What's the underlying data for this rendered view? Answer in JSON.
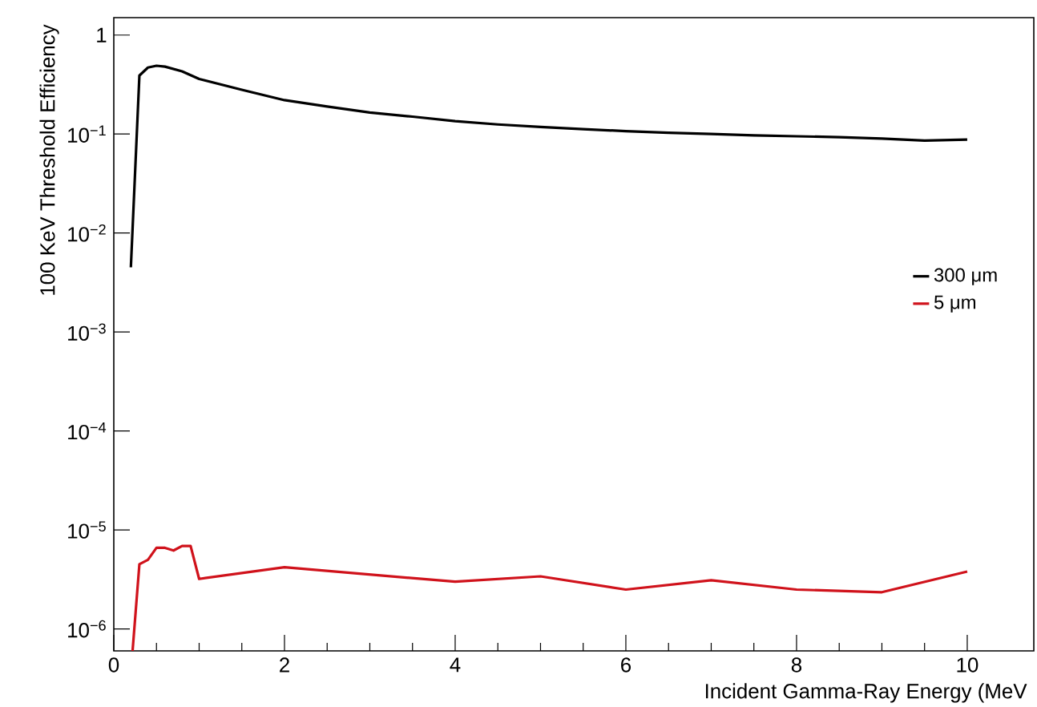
{
  "chart_data": {
    "type": "line",
    "xlabel": "Incident Gamma-Ray Energy (MeV",
    "ylabel": "100 KeV Threshold Efficiency",
    "log": "y",
    "xlim": [
      0,
      10.78
    ],
    "ylim": [
      6e-07,
      1.5
    ],
    "xticks": [
      0,
      2,
      4,
      6,
      8,
      10
    ],
    "yticks": [
      1,
      {
        "value": 0.1,
        "label": "10$^{−1}$"
      },
      {
        "value": 0.01,
        "label": "10$^{−2}$"
      },
      {
        "value": 0.001,
        "label": "10$^{−3}$"
      },
      {
        "value": 0.0001,
        "label": "10$^{−4}$"
      },
      {
        "value": 1e-05,
        "label": "10$^{−5}$"
      },
      {
        "value": 1e-06,
        "label": "10$^{−6}$"
      }
    ],
    "legend": "right",
    "grid": false,
    "marker": "none",
    "line_style": "solid",
    "series": [
      {
        "name": "300 μm",
        "color": "#000000",
        "x": [
          0.2,
          0.3,
          0.4,
          0.5,
          0.6,
          0.8,
          1.0,
          1.5,
          2.0,
          2.5,
          3.0,
          3.5,
          4.0,
          4.5,
          5.0,
          5.5,
          6.0,
          6.5,
          7.0,
          7.5,
          8.0,
          8.5,
          9.0,
          9.5,
          10.0
        ],
        "values": [
          0.0045,
          0.39,
          0.47,
          0.49,
          0.48,
          0.43,
          0.36,
          0.28,
          0.22,
          0.19,
          0.165,
          0.15,
          0.135,
          0.125,
          0.118,
          0.112,
          0.107,
          0.103,
          0.1,
          0.097,
          0.095,
          0.093,
          0.09,
          0.086,
          0.088
        ]
      },
      {
        "name": "5 μm",
        "color": "#d0121b",
        "x": [
          0.22,
          0.3,
          0.4,
          0.5,
          0.6,
          0.7,
          0.8,
          0.9,
          1.0,
          2,
          4,
          5,
          6,
          7,
          8,
          9,
          10
        ],
        "values": [
          6e-07,
          4.5e-06,
          5e-06,
          6.6e-06,
          6.6e-06,
          6.2e-06,
          6.9e-06,
          6.9e-06,
          3.2e-06,
          4.2e-06,
          3e-06,
          3.4e-06,
          2.5e-06,
          3.1e-06,
          2.5e-06,
          2.35e-06,
          3.8e-06
        ]
      }
    ]
  }
}
